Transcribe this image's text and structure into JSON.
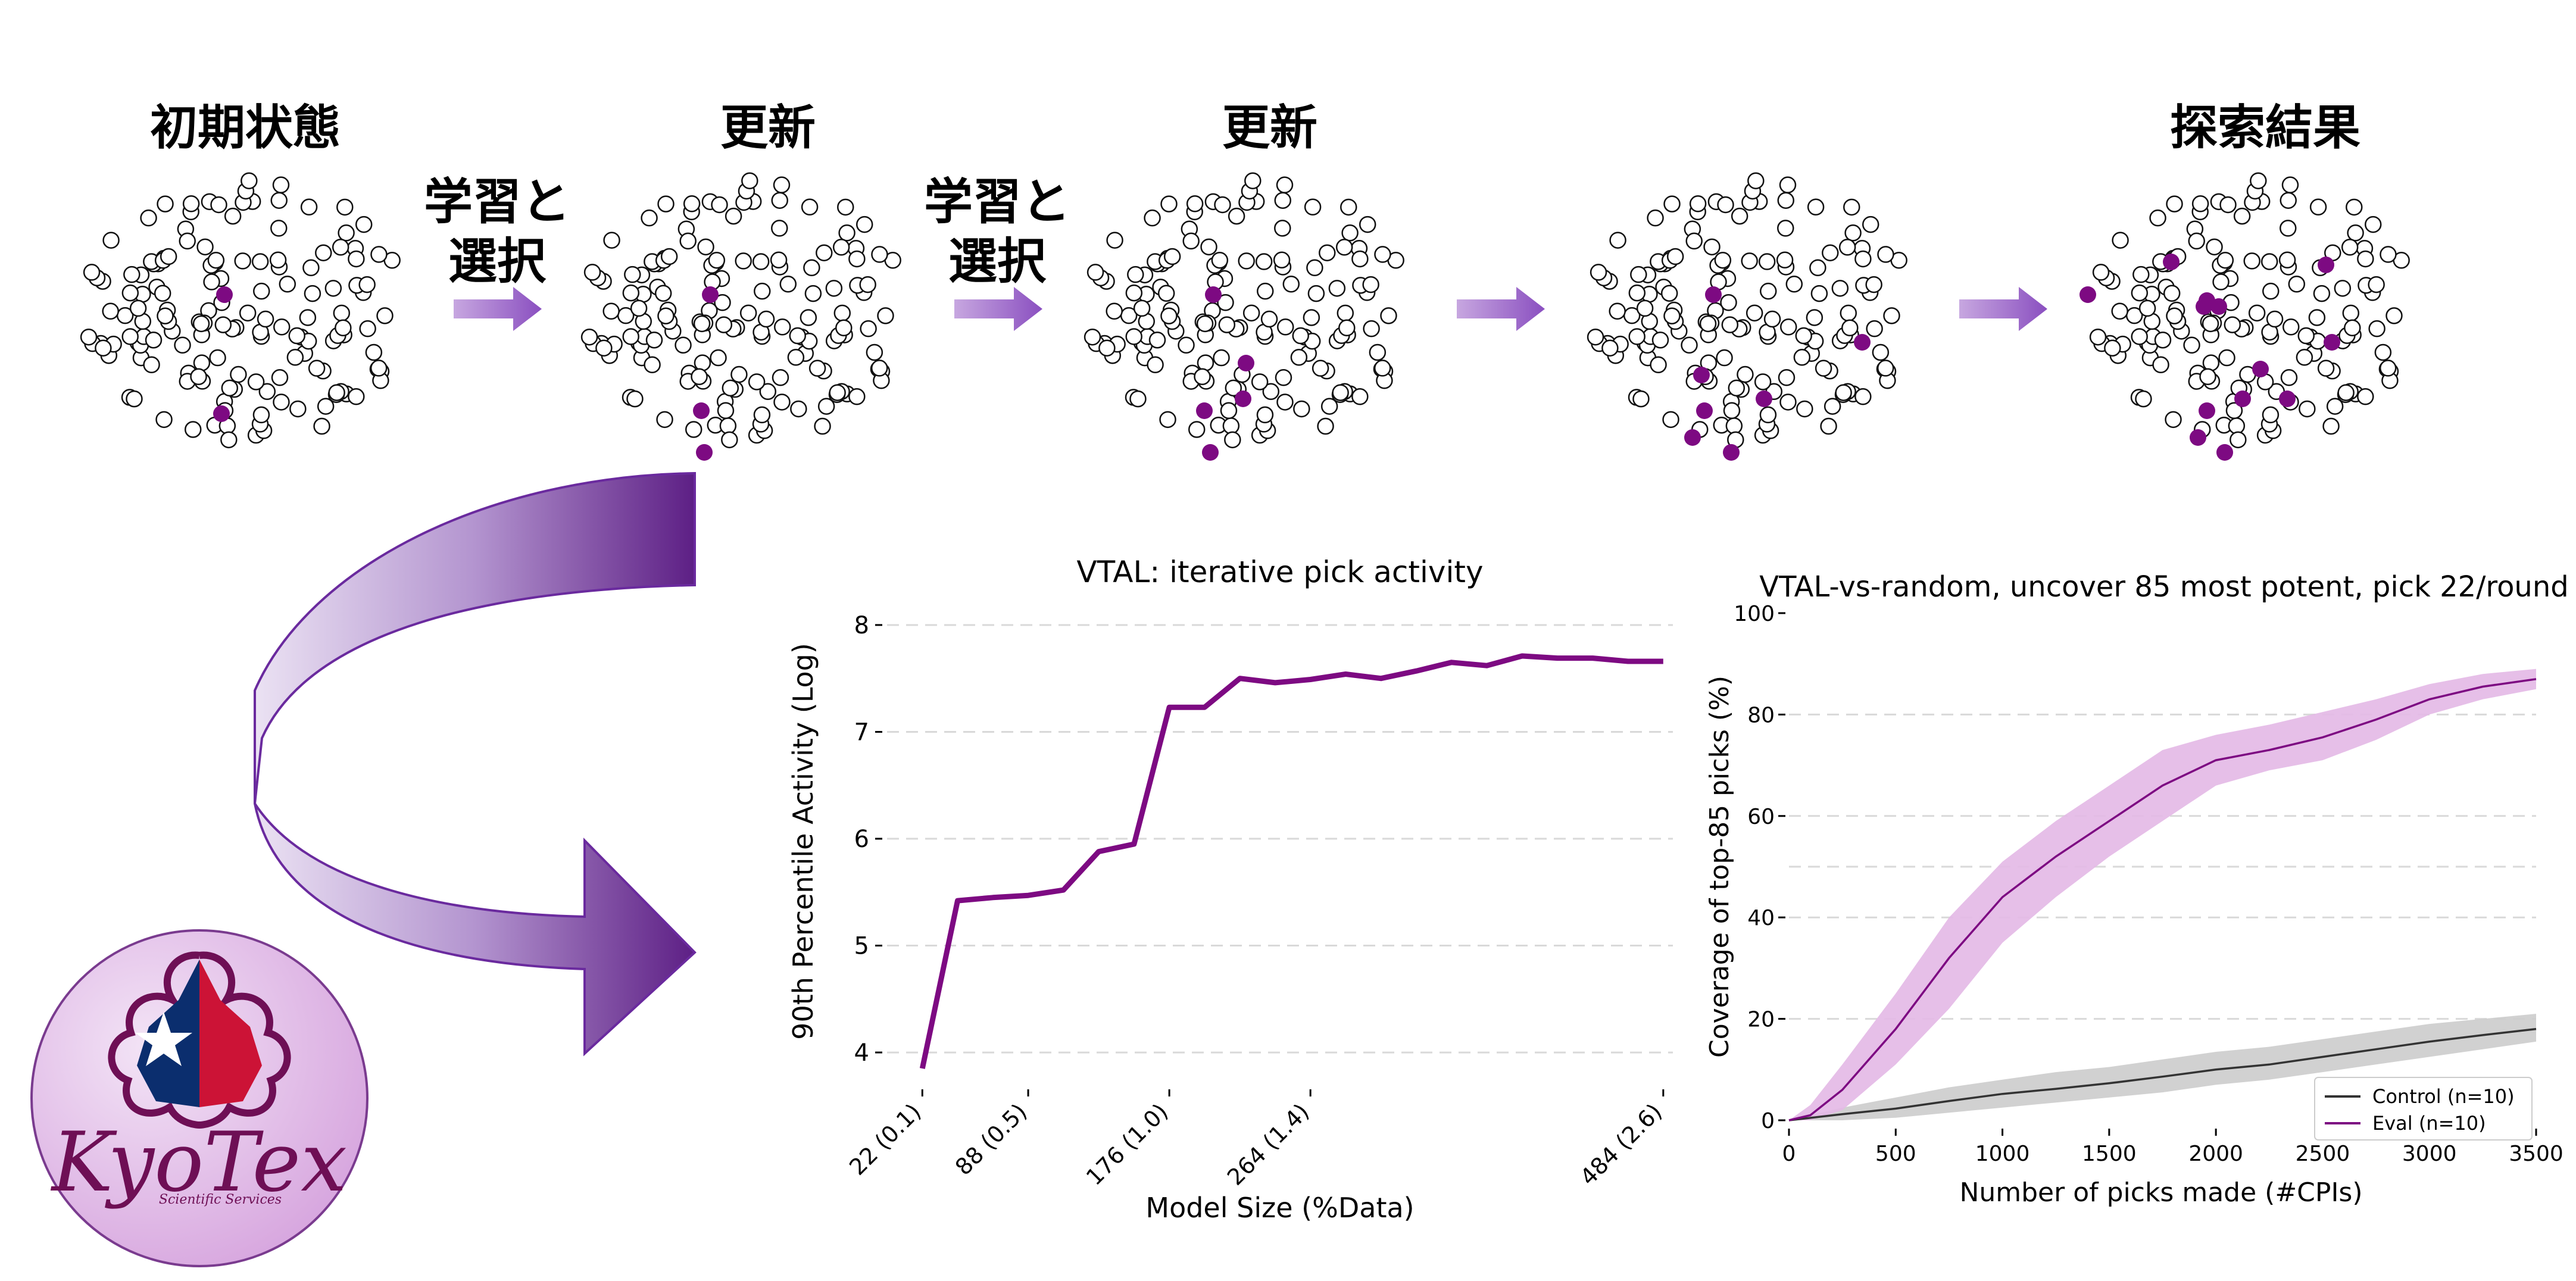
{
  "stages": [
    {
      "title": "初期状態"
    },
    {
      "title": "更新"
    },
    {
      "title": "更新"
    },
    {
      "title": ""
    },
    {
      "title": "探索結果"
    }
  ],
  "step_arrow_label": {
    "line1": "学習と",
    "line2": "選択"
  },
  "logo": {
    "text": "KyoTex",
    "subtitle": "Scientific Services"
  },
  "colors": {
    "accent": "#7d0a82",
    "light_accent": "#e3b8e6",
    "control": "#333333",
    "band_control": "#cccccc",
    "grid": "#d9d9d9"
  },
  "chart_data": [
    {
      "type": "line",
      "title": "VTAL: iterative pick activity",
      "xlabel": "Model Size (%Data)",
      "ylabel": "90th Percentile Activity (Log)",
      "x_tick_labels": [
        "22 (0.1)",
        "88 (0.5)",
        "176 (1.0)",
        "264 (1.4)",
        "484 (2.6)"
      ],
      "x_tick_values": [
        22,
        88,
        176,
        264,
        484
      ],
      "xlim": [
        0,
        490
      ],
      "ylim": [
        3.85,
        8.1
      ],
      "y_ticks": [
        4,
        5,
        6,
        7,
        8
      ],
      "grid": true,
      "series": [
        {
          "x": [
            22,
            44,
            66,
            88,
            110,
            132,
            154,
            176,
            198,
            220,
            242,
            264,
            286,
            308,
            330,
            352,
            374,
            396,
            418,
            440,
            462,
            484
          ],
          "y": [
            3.85,
            5.42,
            5.45,
            5.47,
            5.52,
            5.88,
            5.95,
            7.23,
            7.23,
            7.5,
            7.46,
            7.49,
            7.54,
            7.5,
            7.57,
            7.65,
            7.62,
            7.71,
            7.69,
            7.69,
            7.66,
            7.66
          ]
        }
      ]
    },
    {
      "type": "line",
      "title": "VTAL-vs-random, uncover 85 most potent, pick 22/round",
      "xlabel": "Number of picks made (#CPIs)",
      "ylabel": "Coverage of top-85 picks (%)",
      "x_ticks": [
        0,
        500,
        1000,
        1500,
        2000,
        2500,
        3000,
        3500
      ],
      "y_ticks": [
        0,
        20,
        40,
        60,
        80,
        100
      ],
      "xlim": [
        0,
        3500
      ],
      "ylim": [
        0,
        100
      ],
      "grid": true,
      "legend_position": "bottom-right",
      "series": [
        {
          "name": "Control (n=10)",
          "x": [
            0,
            250,
            500,
            750,
            1000,
            1250,
            1500,
            1750,
            2000,
            2250,
            2500,
            2750,
            3000,
            3250,
            3500
          ],
          "y": [
            0,
            1.2,
            2.3,
            3.8,
            5.2,
            6.2,
            7.3,
            8.6,
            10,
            11,
            12.5,
            14,
            15.5,
            16.8,
            18
          ],
          "band_low": [
            0,
            0,
            0.5,
            1.5,
            2.5,
            3.5,
            4.5,
            5.5,
            7,
            8,
            9.5,
            11,
            12.5,
            14,
            15.5
          ],
          "band_high": [
            0,
            2.5,
            4.5,
            6.5,
            8,
            9.5,
            10.5,
            12,
            13.5,
            14.5,
            16,
            17.5,
            19,
            20,
            21
          ]
        },
        {
          "name": "Eval (n=10)",
          "x": [
            0,
            100,
            250,
            500,
            750,
            1000,
            1250,
            1500,
            1750,
            2000,
            2250,
            2500,
            2750,
            3000,
            3250,
            3500
          ],
          "y": [
            0,
            1,
            6,
            18,
            32,
            44,
            52,
            59,
            66,
            71,
            73,
            75.5,
            79,
            83,
            85.5,
            87
          ],
          "band_low": [
            0,
            0,
            2,
            11,
            22,
            35,
            44,
            52,
            59,
            66,
            69,
            71,
            75,
            80,
            83,
            85
          ],
          "band_high": [
            0,
            3,
            11,
            25,
            40,
            51,
            59,
            66,
            73,
            76,
            78,
            80.5,
            83,
            86,
            88,
            89
          ]
        }
      ]
    }
  ]
}
